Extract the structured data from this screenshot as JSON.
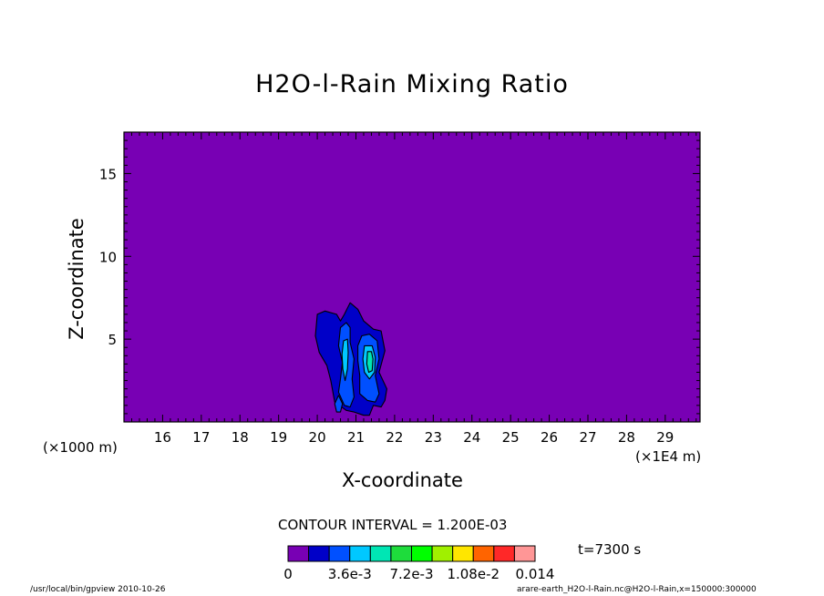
{
  "chart_data": {
    "type": "heatmap",
    "title": "H2O-l-Rain Mixing Ratio",
    "xlabel": "X-coordinate",
    "ylabel": "Z-coordinate",
    "x_unit_note": "(×1E4 m)",
    "y_unit_note": "(×1000 m)",
    "x_ticks": [
      "16",
      "17",
      "18",
      "19",
      "20",
      "21",
      "22",
      "23",
      "24",
      "25",
      "26",
      "27",
      "28",
      "29"
    ],
    "y_ticks": [
      "5",
      "10",
      "15"
    ],
    "xlim": [
      15.0,
      29.9
    ],
    "ylim": [
      0,
      17.5
    ],
    "contour_interval": "CONTOUR INTERVAL = 1.200E-03",
    "time_label": "t=7300 s",
    "colorbar": {
      "colors": [
        "#7800b4",
        "#0000c8",
        "#0050ff",
        "#00c8ff",
        "#00e6b4",
        "#1edc3c",
        "#00ff00",
        "#a0f000",
        "#ffe600",
        "#ff6400",
        "#ff2828",
        "#ff9696"
      ],
      "labels": [
        "0",
        "3.6e-3",
        "7.2e-3",
        "1.08e-2",
        "0.014"
      ]
    },
    "contours": [
      {
        "level": 1,
        "color": "#0000c8",
        "points": [
          [
            20.0,
            6.5
          ],
          [
            20.2,
            6.7
          ],
          [
            20.5,
            6.5
          ],
          [
            20.6,
            6.1
          ],
          [
            20.7,
            6.5
          ],
          [
            20.85,
            7.2
          ],
          [
            21.05,
            6.8
          ],
          [
            21.2,
            6.1
          ],
          [
            21.45,
            5.6
          ],
          [
            21.65,
            5.5
          ],
          [
            21.75,
            4.3
          ],
          [
            21.6,
            3.0
          ],
          [
            21.8,
            2.0
          ],
          [
            21.75,
            1.3
          ],
          [
            21.65,
            0.9
          ],
          [
            21.45,
            1.0
          ],
          [
            21.35,
            0.4
          ],
          [
            21.2,
            0.4
          ],
          [
            20.95,
            0.6
          ],
          [
            20.75,
            0.7
          ],
          [
            20.45,
            1.2
          ],
          [
            20.35,
            2.5
          ],
          [
            20.25,
            3.4
          ],
          [
            20.05,
            4.2
          ],
          [
            19.95,
            5.2
          ]
        ]
      },
      {
        "level": 2,
        "color": "#0050ff",
        "points": [
          [
            20.6,
            5.7
          ],
          [
            20.75,
            6.0
          ],
          [
            20.85,
            5.7
          ],
          [
            20.85,
            4.8
          ],
          [
            20.95,
            3.8
          ],
          [
            20.9,
            2.6
          ],
          [
            20.95,
            1.5
          ],
          [
            20.85,
            0.9
          ],
          [
            20.7,
            1.0
          ],
          [
            20.55,
            1.8
          ],
          [
            20.6,
            2.6
          ],
          [
            20.65,
            3.6
          ],
          [
            20.55,
            4.6
          ]
        ]
      },
      {
        "level": 2,
        "color": "#0050ff",
        "points": [
          [
            21.15,
            5.2
          ],
          [
            21.35,
            5.3
          ],
          [
            21.55,
            4.9
          ],
          [
            21.6,
            3.8
          ],
          [
            21.5,
            2.8
          ],
          [
            21.6,
            1.7
          ],
          [
            21.5,
            1.2
          ],
          [
            21.3,
            1.3
          ],
          [
            21.1,
            1.7
          ],
          [
            21.1,
            2.8
          ],
          [
            21.05,
            3.7
          ],
          [
            21.05,
            4.6
          ]
        ]
      },
      {
        "level": 3,
        "color": "#00c8ff",
        "points": [
          [
            20.68,
            4.9
          ],
          [
            20.78,
            5.0
          ],
          [
            20.8,
            4.2
          ],
          [
            20.78,
            3.2
          ],
          [
            20.72,
            2.5
          ],
          [
            20.66,
            3.2
          ],
          [
            20.64,
            4.1
          ]
        ]
      },
      {
        "level": 3,
        "color": "#00c8ff",
        "points": [
          [
            21.22,
            4.6
          ],
          [
            21.42,
            4.6
          ],
          [
            21.5,
            3.9
          ],
          [
            21.48,
            3.0
          ],
          [
            21.35,
            2.6
          ],
          [
            21.22,
            3.0
          ],
          [
            21.18,
            3.8
          ]
        ]
      },
      {
        "level": 4,
        "color": "#00e6b4",
        "points": [
          [
            21.3,
            4.25
          ],
          [
            21.4,
            4.25
          ],
          [
            21.44,
            3.8
          ],
          [
            21.42,
            3.1
          ],
          [
            21.33,
            3.0
          ],
          [
            21.28,
            3.5
          ]
        ]
      },
      {
        "level": 2,
        "color": "#0050ff",
        "points": [
          [
            20.45,
            1.1
          ],
          [
            20.55,
            1.6
          ],
          [
            20.65,
            1.1
          ],
          [
            20.6,
            0.6
          ],
          [
            20.5,
            0.6
          ]
        ]
      }
    ]
  },
  "footer": {
    "left": "/usr/local/bin/gpview  2010-10-26",
    "right": "arare-earth_H2O-l-Rain.nc@H2O-l-Rain,x=150000:300000"
  }
}
